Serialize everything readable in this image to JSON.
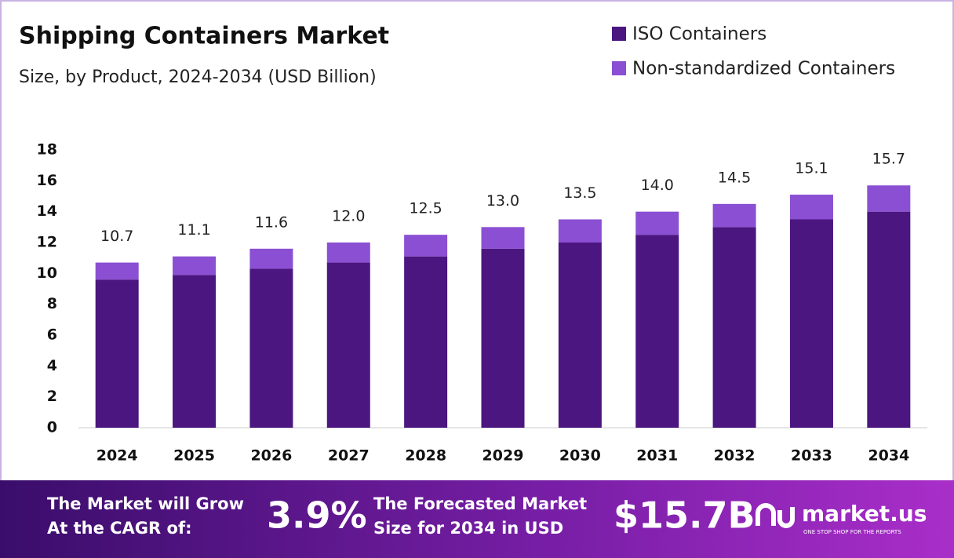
{
  "chart_data": {
    "type": "stacked_bar",
    "title": "Shipping Containers Market",
    "subtitle": "Size, by Product, 2024-2034 (USD Billion)",
    "categories": [
      "2024",
      "2025",
      "2026",
      "2027",
      "2028",
      "2029",
      "2030",
      "2031",
      "2032",
      "2033",
      "2034"
    ],
    "series": [
      {
        "name": "ISO Containers",
        "color": "#4b1680",
        "values": [
          9.6,
          9.9,
          10.3,
          10.7,
          11.1,
          11.6,
          12.0,
          12.5,
          13.0,
          13.5,
          14.0
        ]
      },
      {
        "name": "Non-standardized Containers",
        "color": "#8b4fd3",
        "values": [
          1.1,
          1.2,
          1.3,
          1.3,
          1.4,
          1.4,
          1.5,
          1.5,
          1.5,
          1.6,
          1.7
        ]
      }
    ],
    "total_labels": [
      "10.7",
      "11.1",
      "11.6",
      "12.0",
      "12.5",
      "13.0",
      "13.5",
      "14.0",
      "14.5",
      "15.1",
      "15.7"
    ],
    "ylim": [
      0,
      18
    ],
    "yticks": [
      0,
      2,
      4,
      6,
      8,
      10,
      12,
      14,
      16,
      18
    ],
    "grid": false,
    "legend": "top-right"
  },
  "footer": {
    "cagr_text": [
      "The Market will Grow",
      "At the CAGR of:"
    ],
    "cagr": "3.9%",
    "forecast_text": [
      "The Forecasted Market",
      "Size for 2034 in USD"
    ],
    "forecast": "$15.7B",
    "brand": "market.us",
    "tagline": "ONE STOP SHOP FOR THE REPORTS"
  }
}
